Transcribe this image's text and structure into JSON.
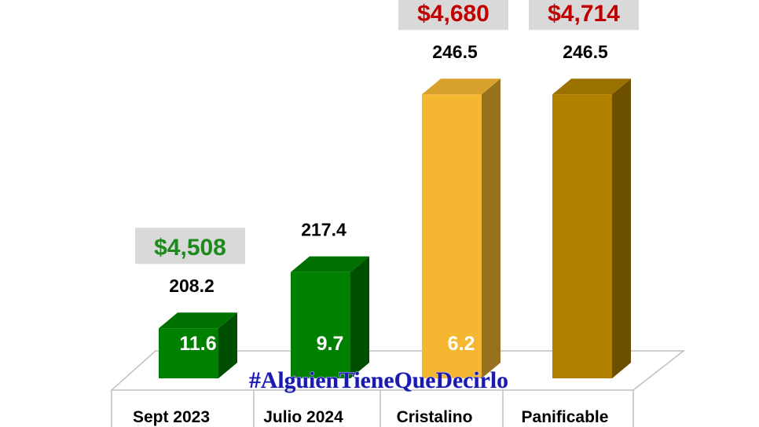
{
  "chart_data": {
    "type": "bar",
    "categories": [
      "Sept 2023",
      "Julio 2024",
      "Cristalino",
      "Panificable"
    ],
    "values": [
      208.2,
      217.4,
      246.5,
      246.5
    ],
    "value_labels": [
      "208.2",
      "217.4",
      "246.5",
      "246.5"
    ],
    "inner_labels": [
      "11.6",
      "9.7",
      "6.2",
      ""
    ],
    "price_labels": [
      "$4,508",
      "",
      "$4,680",
      "$4,714"
    ],
    "price_colors": [
      "#1e8a1e",
      "",
      "#c00000",
      "#c00000"
    ],
    "bar_colors": [
      "#008000",
      "#008000",
      "#f5b731",
      "#b08000"
    ],
    "ylim": [
      200,
      250
    ],
    "grid": false,
    "style": "3d",
    "title": "",
    "xlabel": "",
    "ylabel": ""
  },
  "watermark": "#AlguienTieneQueDecirlo"
}
